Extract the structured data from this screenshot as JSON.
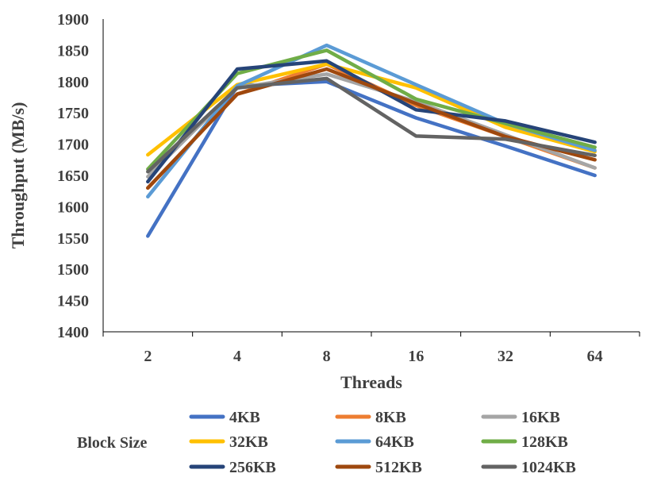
{
  "chart_data": {
    "type": "line",
    "title": "",
    "xlabel": "Threads",
    "ylabel": "Throughput (MB/s)",
    "ylim": [
      1400,
      1900
    ],
    "yticks": [
      1400,
      1450,
      1500,
      1550,
      1600,
      1650,
      1700,
      1750,
      1800,
      1850,
      1900
    ],
    "categories": [
      "2",
      "4",
      "8",
      "16",
      "32",
      "64"
    ],
    "legend_title": "Block Size",
    "legend_position": "bottom",
    "grid": false,
    "series": [
      {
        "name": "4KB",
        "color": "#4472C4",
        "values": [
          1553,
          1793,
          1800,
          1742,
          1697,
          1650
        ]
      },
      {
        "name": "8KB",
        "color": "#ED7D31",
        "values": [
          1630,
          1780,
          1828,
          1762,
          1712,
          1662
        ]
      },
      {
        "name": "16KB",
        "color": "#A5A5A5",
        "values": [
          1648,
          1790,
          1812,
          1768,
          1715,
          1662
        ]
      },
      {
        "name": "32KB",
        "color": "#FFC000",
        "values": [
          1683,
          1795,
          1828,
          1790,
          1727,
          1688
        ]
      },
      {
        "name": "64KB",
        "color": "#5B9BD5",
        "values": [
          1616,
          1793,
          1858,
          1795,
          1733,
          1690
        ]
      },
      {
        "name": "128KB",
        "color": "#70AD47",
        "values": [
          1660,
          1813,
          1850,
          1772,
          1733,
          1695
        ]
      },
      {
        "name": "256KB",
        "color": "#264478",
        "values": [
          1640,
          1820,
          1833,
          1755,
          1737,
          1703
        ]
      },
      {
        "name": "512KB",
        "color": "#9E480E",
        "values": [
          1630,
          1780,
          1820,
          1765,
          1712,
          1675
        ]
      },
      {
        "name": "1024KB",
        "color": "#636363",
        "values": [
          1656,
          1790,
          1805,
          1713,
          1708,
          1682
        ]
      }
    ]
  }
}
